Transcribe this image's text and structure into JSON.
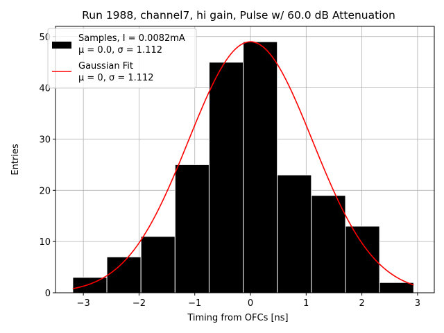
{
  "chart_data": {
    "type": "bar",
    "title": "Run 1988, channel7, hi gain, Pulse w/ 60.0 dB Attenuation",
    "xlabel": "Timing from OFCs [ns]",
    "ylabel": "Entries",
    "xlim": [
      -3.5,
      3.3
    ],
    "ylim": [
      0,
      52
    ],
    "xticks": [
      -3,
      -2,
      -1,
      0,
      1,
      2,
      3
    ],
    "xtick_labels": [
      "−3",
      "−2",
      "−1",
      "0",
      "1",
      "2",
      "3"
    ],
    "yticks": [
      0,
      10,
      20,
      30,
      40,
      50
    ],
    "ytick_labels": [
      "0",
      "10",
      "20",
      "30",
      "40",
      "50"
    ],
    "grid": true,
    "legend_position": "top-left",
    "histogram": {
      "bin_edges": [
        -3.19,
        -2.578,
        -1.966,
        -1.354,
        -0.742,
        -0.13,
        0.482,
        1.094,
        1.706,
        2.318,
        2.93
      ],
      "counts": [
        3,
        7,
        11,
        25,
        45,
        49,
        23,
        19,
        13,
        2
      ],
      "color": "#000000",
      "edgecolor": "#ffffff"
    },
    "fit": {
      "mu": 0.0,
      "sigma": 1.112,
      "amplitude": 49,
      "color": "#ff0000"
    },
    "legend": [
      {
        "line1": "Samples, I = 0.0082mA",
        "line2": "μ = 0.0, σ = 1.112",
        "kind": "bar",
        "color": "#000000"
      },
      {
        "line1": "Gaussian Fit",
        "line2": "μ = 0, σ = 1.112",
        "kind": "line",
        "color": "#ff0000"
      }
    ]
  }
}
